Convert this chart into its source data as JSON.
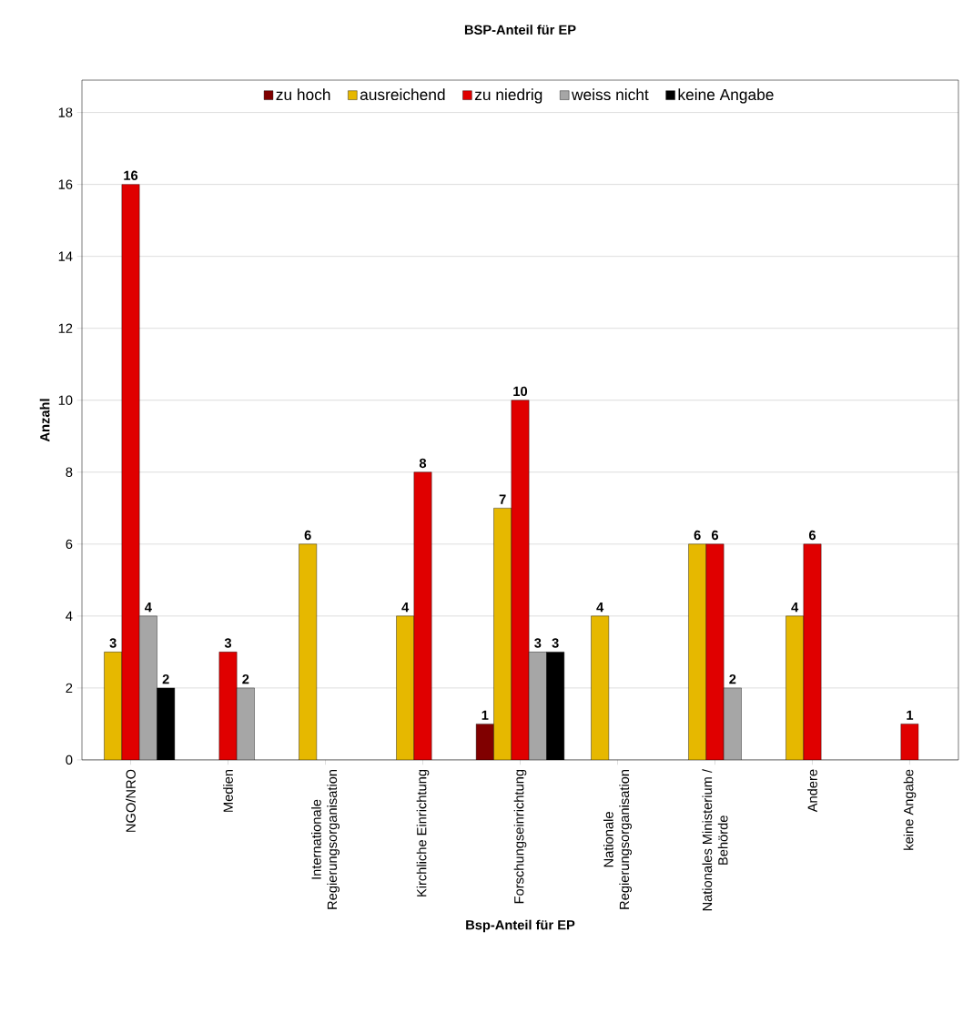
{
  "chart_data": {
    "type": "bar",
    "title": "BSP-Anteil für EP",
    "xlabel": "Bsp-Anteil für EP",
    "ylabel": "Anzahl",
    "categories": [
      "NGO/NRO",
      "Medien",
      "Internationale Regierungsorganisation",
      "Kirchliche Einrichtung",
      "Forschungseinrichtung",
      "Nationale Regierungsorganisation",
      "Nationales Ministerium / Behörde",
      "Andere",
      "keine Angabe"
    ],
    "series": [
      {
        "name": "zu hoch",
        "color": "#800000",
        "values": [
          null,
          null,
          null,
          null,
          1,
          null,
          null,
          null,
          null
        ]
      },
      {
        "name": "ausreichend",
        "color": "#e6b800",
        "values": [
          3,
          null,
          6,
          4,
          7,
          4,
          6,
          4,
          null
        ]
      },
      {
        "name": "zu niedrig",
        "color": "#e00000",
        "values": [
          16,
          3,
          null,
          8,
          10,
          null,
          6,
          6,
          1
        ]
      },
      {
        "name": "weiss nicht",
        "color": "#a6a6a6",
        "values": [
          4,
          2,
          null,
          null,
          3,
          null,
          2,
          null,
          null
        ]
      },
      {
        "name": "keine Angabe",
        "color": "#000000",
        "values": [
          2,
          null,
          null,
          null,
          3,
          null,
          null,
          null,
          null
        ]
      }
    ],
    "ylim": [
      0,
      18.9
    ],
    "yticks": [
      0,
      2,
      4,
      6,
      8,
      10,
      12,
      14,
      16,
      18
    ],
    "grid": "y",
    "legend": "top",
    "data_labels": true
  }
}
